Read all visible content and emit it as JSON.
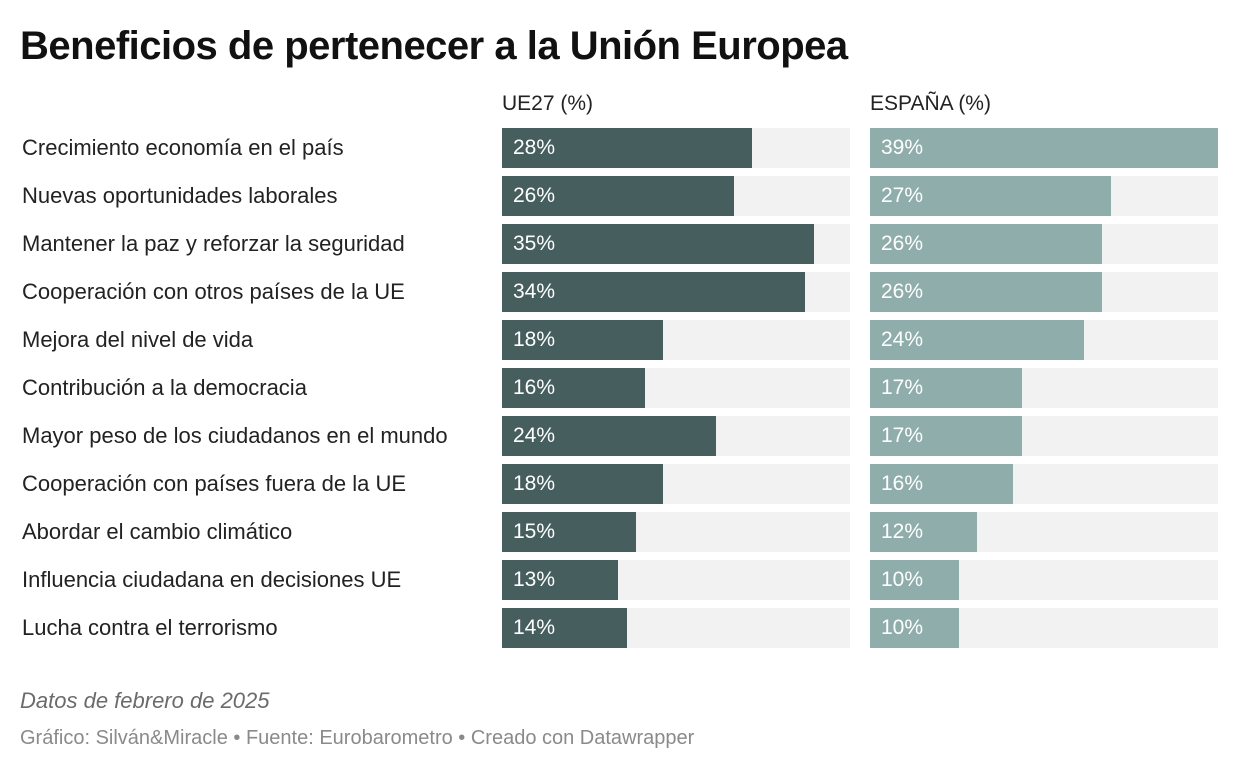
{
  "chart_data": {
    "type": "bar",
    "title": "Beneficios de pertenecer a la Unión Europea",
    "categories": [
      "Crecimiento economía en el país",
      "Nuevas oportunidades laborales",
      "Mantener la paz y reforzar la seguridad",
      "Cooperación con otros países de la UE",
      "Mejora del nivel de vida",
      "Contribución a la democracia",
      "Mayor peso de los ciudadanos en el mundo",
      "Cooperación con países fuera de la UE",
      "Abordar el cambio climático",
      "Influencia ciudadana en decisiones UE",
      "Lucha contra el terrorismo"
    ],
    "series": [
      {
        "name": "UE27 (%)",
        "color": "#465f5e",
        "values": [
          28,
          26,
          35,
          34,
          18,
          16,
          24,
          18,
          15,
          13,
          14
        ]
      },
      {
        "name": "ESPAÑA (%)",
        "color": "#8fadab",
        "values": [
          39,
          27,
          26,
          26,
          24,
          17,
          17,
          16,
          12,
          10,
          10
        ]
      }
    ],
    "xlim": [
      0,
      39
    ],
    "value_suffix": "%"
  },
  "note": "Datos de febrero de 2025",
  "credits": "Gráfico: Silván&Miracle • Fuente: Eurobarometro • Creado con Datawrapper"
}
